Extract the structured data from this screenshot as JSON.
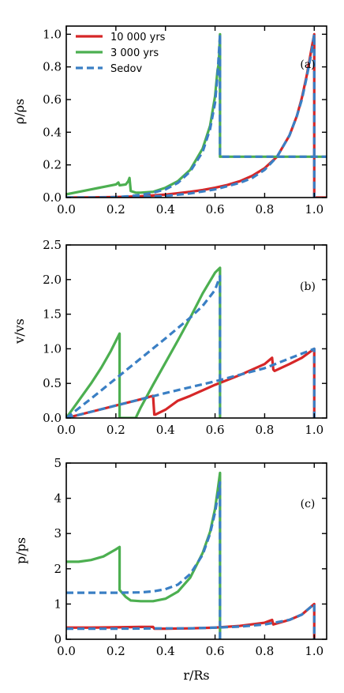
{
  "colors": {
    "red": "#d62728",
    "green": "#4caf50",
    "blue": "#3a7fc4",
    "axis": "#000000"
  },
  "legend": [
    {
      "label": "10 000 yrs",
      "color": "#d62728",
      "style": "solid"
    },
    {
      "label": "3 000 yrs",
      "color": "#4caf50",
      "style": "solid"
    },
    {
      "label": "Sedov",
      "color": "#3a7fc4",
      "style": "dashed"
    }
  ],
  "chart_data": [
    {
      "type": "line",
      "panel": "(a)",
      "xlabel": "",
      "ylabel": "ρ/ρs",
      "xlim": [
        0.0,
        1.05
      ],
      "ylim": [
        0.0,
        1.05
      ],
      "xticks": [
        "0.0",
        "0.2",
        "0.4",
        "0.6",
        "0.8",
        "1.0"
      ],
      "yticks": [
        "0.0",
        "0.2",
        "0.4",
        "0.6",
        "0.8",
        "1.0"
      ],
      "legend_position": "top-left",
      "series": [
        {
          "name": "10 000 yrs",
          "color": "#d62728",
          "style": "solid",
          "x": [
            0.0,
            0.1,
            0.2,
            0.3,
            0.4,
            0.5,
            0.55,
            0.6,
            0.65,
            0.7,
            0.75,
            0.8,
            0.85,
            0.9,
            0.93,
            0.95,
            0.97,
            0.99,
            1.0,
            1.0,
            1.05
          ],
          "y": [
            0.0,
            0.001,
            0.003,
            0.008,
            0.018,
            0.035,
            0.046,
            0.06,
            0.077,
            0.1,
            0.133,
            0.18,
            0.25,
            0.38,
            0.5,
            0.61,
            0.75,
            0.92,
            1.0,
            0.0,
            0.0
          ]
        },
        {
          "name": "3 000 yrs",
          "color": "#4caf50",
          "style": "solid",
          "x": [
            0.0,
            0.05,
            0.1,
            0.15,
            0.2,
            0.21,
            0.215,
            0.24,
            0.25,
            0.255,
            0.26,
            0.28,
            0.3,
            0.35,
            0.4,
            0.45,
            0.5,
            0.55,
            0.58,
            0.6,
            0.61,
            0.615,
            0.62,
            0.62,
            1.05
          ],
          "y": [
            0.02,
            0.035,
            0.05,
            0.065,
            0.08,
            0.092,
            0.075,
            0.08,
            0.1,
            0.12,
            0.04,
            0.03,
            0.03,
            0.035,
            0.06,
            0.1,
            0.17,
            0.3,
            0.44,
            0.62,
            0.78,
            0.82,
            1.0,
            0.25,
            0.25
          ]
        },
        {
          "name": "Sedov 3 000 yrs",
          "color": "#3a7fc4",
          "style": "dashed",
          "x": [
            0.0,
            0.05,
            0.1,
            0.15,
            0.2,
            0.25,
            0.3,
            0.35,
            0.4,
            0.45,
            0.5,
            0.55,
            0.58,
            0.6,
            0.61,
            0.62,
            0.62,
            1.05
          ],
          "y": [
            0.0,
            0.0,
            0.0,
            0.001,
            0.003,
            0.008,
            0.016,
            0.03,
            0.05,
            0.09,
            0.16,
            0.28,
            0.42,
            0.58,
            0.75,
            1.0,
            0.25,
            0.25
          ]
        },
        {
          "name": "Sedov 10 000 yrs",
          "color": "#3a7fc4",
          "style": "dashed",
          "x": [
            0.0,
            0.2,
            0.4,
            0.5,
            0.6,
            0.7,
            0.75,
            0.8,
            0.85,
            0.9,
            0.93,
            0.95,
            0.97,
            0.99,
            1.0,
            1.0
          ],
          "y": [
            0.0,
            0.0,
            0.01,
            0.025,
            0.05,
            0.09,
            0.12,
            0.17,
            0.25,
            0.38,
            0.5,
            0.6,
            0.74,
            0.9,
            1.0,
            0.0
          ]
        }
      ]
    },
    {
      "type": "line",
      "panel": "(b)",
      "xlabel": "",
      "ylabel": "v/vs",
      "xlim": [
        0.0,
        1.05
      ],
      "ylim": [
        0.0,
        2.5
      ],
      "xticks": [
        "0.0",
        "0.2",
        "0.4",
        "0.6",
        "0.8",
        "1.0"
      ],
      "yticks": [
        "0.0",
        "0.5",
        "1.0",
        "1.5",
        "2.0",
        "2.5"
      ],
      "series": [
        {
          "name": "10 000 yrs",
          "color": "#d62728",
          "style": "solid",
          "x": [
            0.0,
            0.1,
            0.2,
            0.3,
            0.35,
            0.355,
            0.36,
            0.4,
            0.45,
            0.5,
            0.6,
            0.7,
            0.8,
            0.83,
            0.835,
            0.84,
            0.9,
            0.95,
            1.0,
            1.0
          ],
          "y": [
            0.0,
            0.09,
            0.18,
            0.27,
            0.32,
            0.05,
            0.05,
            0.12,
            0.25,
            0.32,
            0.48,
            0.62,
            0.78,
            0.87,
            0.7,
            0.68,
            0.78,
            0.87,
            1.0,
            0.0
          ]
        },
        {
          "name": "3 000 yrs",
          "color": "#4caf50",
          "style": "solid",
          "x": [
            0.0,
            0.03,
            0.06,
            0.1,
            0.14,
            0.18,
            0.215,
            0.215,
            0.28,
            0.3,
            0.35,
            0.4,
            0.45,
            0.5,
            0.55,
            0.6,
            0.62,
            0.62
          ],
          "y": [
            0.0,
            0.15,
            0.3,
            0.5,
            0.72,
            0.97,
            1.22,
            0.0,
            0.0,
            0.15,
            0.48,
            0.8,
            1.12,
            1.45,
            1.8,
            2.1,
            2.17,
            0.0
          ]
        },
        {
          "name": "Sedov 3 000 yrs",
          "color": "#3a7fc4",
          "style": "dashed",
          "x": [
            0.0,
            0.1,
            0.2,
            0.3,
            0.4,
            0.5,
            0.55,
            0.6,
            0.62,
            0.62
          ],
          "y": [
            0.0,
            0.28,
            0.57,
            0.86,
            1.15,
            1.45,
            1.62,
            1.85,
            2.05,
            0.0
          ]
        },
        {
          "name": "Sedov 10 000 yrs",
          "color": "#3a7fc4",
          "style": "dashed",
          "x": [
            0.0,
            0.2,
            0.4,
            0.6,
            0.8,
            1.0,
            1.0
          ],
          "y": [
            0.0,
            0.18,
            0.36,
            0.53,
            0.72,
            1.0,
            0.0
          ]
        }
      ]
    },
    {
      "type": "line",
      "panel": "(c)",
      "xlabel": "r/Rs",
      "ylabel": "p/ps",
      "xlim": [
        0.0,
        1.05
      ],
      "ylim": [
        0.0,
        5.0
      ],
      "xticks": [
        "0.0",
        "0.2",
        "0.4",
        "0.6",
        "0.8",
        "1.0"
      ],
      "yticks": [
        "0",
        "1",
        "2",
        "3",
        "4",
        "5"
      ],
      "series": [
        {
          "name": "10 000 yrs",
          "color": "#d62728",
          "style": "solid",
          "x": [
            0.0,
            0.1,
            0.2,
            0.3,
            0.35,
            0.355,
            0.4,
            0.5,
            0.6,
            0.7,
            0.8,
            0.83,
            0.835,
            0.9,
            0.95,
            1.0,
            1.0
          ],
          "y": [
            0.33,
            0.33,
            0.34,
            0.35,
            0.35,
            0.3,
            0.3,
            0.31,
            0.33,
            0.38,
            0.47,
            0.55,
            0.42,
            0.55,
            0.7,
            1.0,
            0.0
          ]
        },
        {
          "name": "3 000 yrs",
          "color": "#4caf50",
          "style": "solid",
          "x": [
            0.0,
            0.05,
            0.1,
            0.15,
            0.2,
            0.215,
            0.215,
            0.24,
            0.26,
            0.3,
            0.35,
            0.4,
            0.45,
            0.5,
            0.55,
            0.58,
            0.6,
            0.61,
            0.62,
            0.62
          ],
          "y": [
            2.2,
            2.2,
            2.25,
            2.35,
            2.55,
            2.62,
            1.4,
            1.2,
            1.1,
            1.08,
            1.08,
            1.15,
            1.35,
            1.75,
            2.45,
            3.05,
            3.7,
            4.2,
            4.72,
            0.0
          ]
        },
        {
          "name": "Sedov 3 000 yrs",
          "color": "#3a7fc4",
          "style": "dashed",
          "x": [
            0.0,
            0.1,
            0.2,
            0.3,
            0.35,
            0.4,
            0.45,
            0.5,
            0.55,
            0.58,
            0.6,
            0.62,
            0.62
          ],
          "y": [
            1.32,
            1.32,
            1.32,
            1.33,
            1.36,
            1.42,
            1.55,
            1.85,
            2.4,
            3.0,
            3.6,
            4.45,
            0.0
          ]
        },
        {
          "name": "Sedov 10 000 yrs",
          "color": "#3a7fc4",
          "style": "dashed",
          "x": [
            0.0,
            0.2,
            0.4,
            0.5,
            0.6,
            0.7,
            0.8,
            0.9,
            0.95,
            1.0,
            1.0
          ],
          "y": [
            0.3,
            0.3,
            0.31,
            0.31,
            0.33,
            0.36,
            0.42,
            0.55,
            0.7,
            1.0,
            0.0
          ]
        }
      ]
    }
  ]
}
